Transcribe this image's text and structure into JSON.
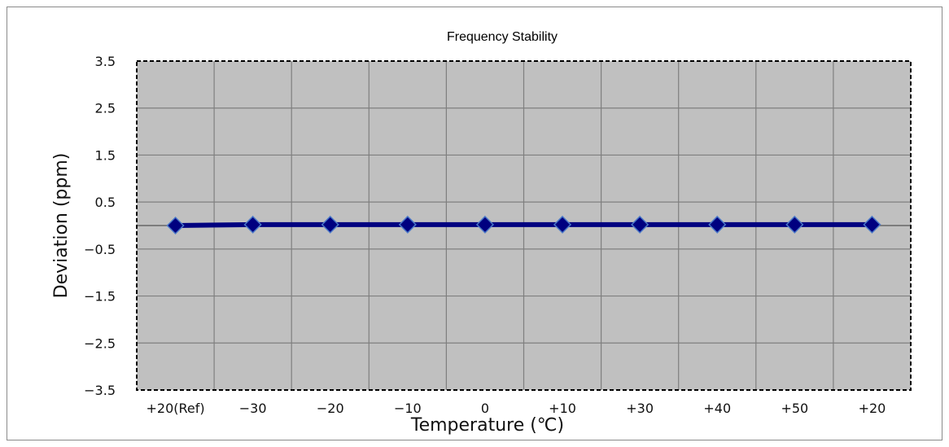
{
  "chart_data": {
    "type": "line",
    "title": "Frequency Stability",
    "xlabel": "Temperature (℃)",
    "ylabel": "Deviation (ppm)",
    "categories": [
      "+20(Ref)",
      "−30",
      "−20",
      "−10",
      "0",
      "+10",
      "+30",
      "+40",
      "+50",
      "+20"
    ],
    "y_ticks": [
      "3.5",
      "2.5",
      "1.5",
      "0.5",
      "−0.5",
      "−1.5",
      "−2.5",
      "−3.5"
    ],
    "ylim": [
      -3.5,
      3.5
    ],
    "grid": true,
    "legend": "none",
    "series": [
      {
        "values": [
          0.0,
          0.02,
          0.02,
          0.02,
          0.02,
          0.02,
          0.02,
          0.02,
          0.02,
          0.02
        ]
      }
    ],
    "colors": {
      "plot_background": "#c0c0c0",
      "grid": "#7f7f7f",
      "line": "#000080",
      "marker_fill": "#000080",
      "marker_edge": "#4a78c8"
    }
  }
}
